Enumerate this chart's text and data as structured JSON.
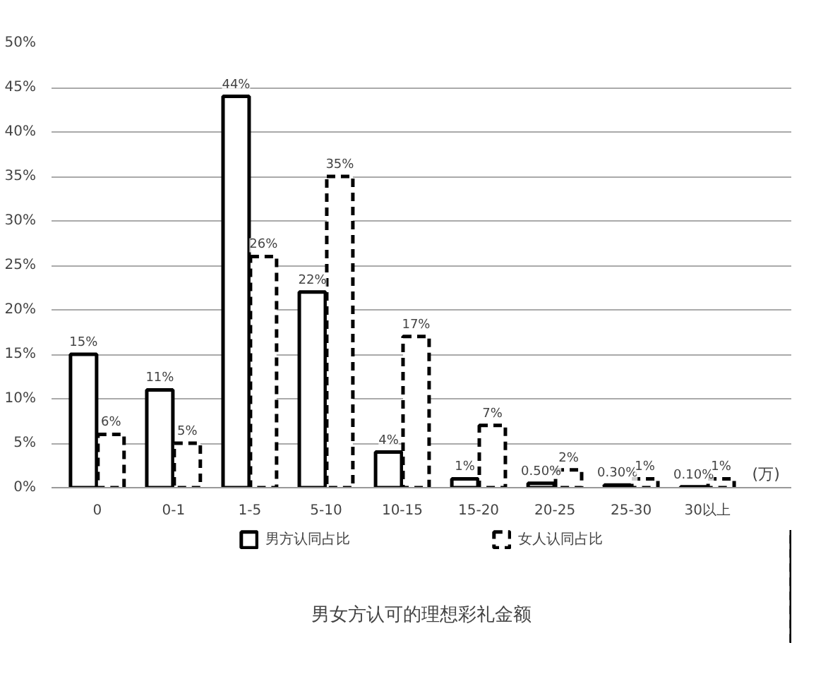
{
  "chart_data": {
    "type": "bar",
    "title": "男女方认可的理想彩礼金额",
    "categories": [
      "0",
      "0-1",
      "1-5",
      "5-10",
      "10-15",
      "15-20",
      "20-25",
      "25-30",
      "30以上"
    ],
    "series": [
      {
        "name": "男方认同占比",
        "color": "#000000",
        "line_style": "solid",
        "values": [
          15,
          11,
          44,
          22,
          4,
          1,
          0.5,
          0.3,
          0.1
        ],
        "value_labels": [
          "15%",
          "11%",
          "44%",
          "22%",
          "4%",
          "1%",
          "0.50%",
          "0.30%",
          "0.10%"
        ]
      },
      {
        "name": "女人认同占比",
        "color": "#000000",
        "line_style": "dashed",
        "values": [
          6,
          5,
          26,
          35,
          17,
          7,
          2,
          1,
          1
        ],
        "value_labels": [
          "6%",
          "5%",
          "26%",
          "35%",
          "17%",
          "7%",
          "2%",
          "1%",
          "1%"
        ]
      }
    ],
    "ylim": [
      0,
      50
    ],
    "yticks": [
      {
        "value": 0,
        "label": "0%"
      },
      {
        "value": 5,
        "label": "5%"
      },
      {
        "value": 10,
        "label": "10%"
      },
      {
        "value": 15,
        "label": "15%"
      },
      {
        "value": 20,
        "label": "20%"
      },
      {
        "value": 25,
        "label": "25%"
      },
      {
        "value": 30,
        "label": "30%"
      },
      {
        "value": 35,
        "label": "35%"
      },
      {
        "value": 40,
        "label": "40%"
      },
      {
        "value": 45,
        "label": "45%"
      },
      {
        "value": 50,
        "label": "50%"
      }
    ],
    "grid": "y",
    "legend": "bottom",
    "annotations": [
      "(万)"
    ]
  }
}
